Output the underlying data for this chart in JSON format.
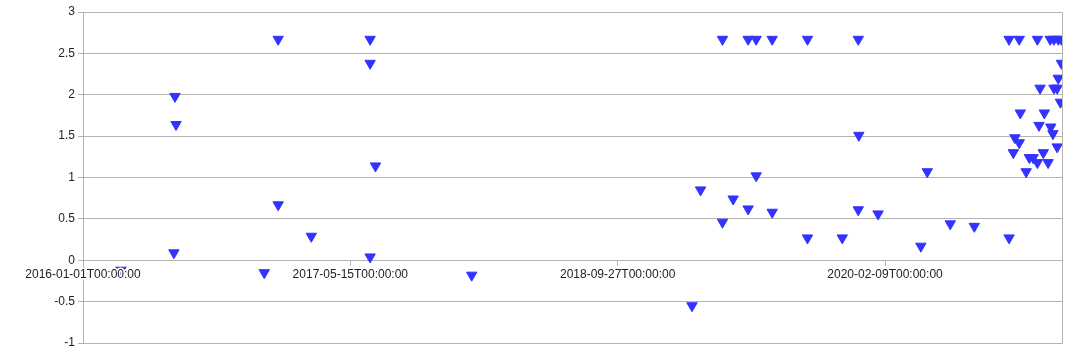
{
  "chart_data": {
    "type": "scatter",
    "marker": "triangle-down",
    "grid": "y",
    "legend": false,
    "xlim": [
      "2016-01-01",
      "2021-01-05"
    ],
    "xticks": [
      {
        "value": "2016-01-01",
        "label": "2016-01-01T00:00:00"
      },
      {
        "value": "2017-05-15",
        "label": "2017-05-15T00:00:00"
      },
      {
        "value": "2018-09-27",
        "label": "2018-09-27T00:00:00"
      },
      {
        "value": "2020-02-09",
        "label": "2020-02-09T00:00:00"
      }
    ],
    "ylim": [
      -1,
      3
    ],
    "yticks": [
      -1,
      -0.5,
      0,
      0.5,
      1,
      1.5,
      2,
      2.5,
      3
    ],
    "series": [
      {
        "color": "#3333ff",
        "x": [
          "2016-03-12",
          "2016-06-21",
          "2016-06-23",
          "2016-06-19",
          "2016-12-05",
          "2016-12-31",
          "2016-12-31",
          "2017-03-03",
          "2017-06-21",
          "2017-06-21",
          "2017-07-01",
          "2017-06-21",
          "2017-12-28",
          "2019-02-13",
          "2019-03-01",
          "2019-04-11",
          "2019-04-11",
          "2019-05-01",
          "2019-05-29",
          "2019-06-13",
          "2019-05-29",
          "2019-06-13",
          "2019-07-13",
          "2019-07-13",
          "2019-09-17",
          "2019-09-17",
          "2019-11-21",
          "2019-12-21",
          "2019-12-21",
          "2019-12-22",
          "2020-01-27",
          "2020-04-16",
          "2020-04-28",
          "2020-06-10",
          "2020-07-25",
          "2020-09-28",
          "2020-09-28",
          "2020-10-17",
          "2020-10-06",
          "2020-10-09",
          "2020-10-17",
          "2020-10-19",
          "2020-10-30",
          "2020-11-05",
          "2020-11-12",
          "2020-11-20",
          "2020-11-20",
          "2020-11-25",
          "2020-11-23",
          "2020-12-03",
          "2020-12-01",
          "2020-12-10",
          "2020-12-14",
          "2020-12-15",
          "2020-12-19",
          "2020-12-21",
          "2020-12-21",
          "2020-12-29",
          "2020-12-27",
          "2020-12-27",
          "2021-01-02",
          "2021-01-04",
          "2021-01-04",
          "2020-12-29"
        ],
        "values": [
          -0.12,
          1.98,
          1.64,
          0.09,
          -0.15,
          2.67,
          0.67,
          0.29,
          2.67,
          2.38,
          1.14,
          0.04,
          -0.18,
          -0.55,
          0.85,
          2.67,
          0.46,
          0.74,
          2.67,
          2.67,
          0.62,
          1.02,
          2.67,
          0.58,
          2.67,
          0.27,
          0.27,
          2.67,
          0.61,
          1.51,
          0.56,
          0.17,
          1.07,
          0.44,
          0.41,
          0.27,
          2.67,
          2.67,
          1.3,
          1.48,
          1.42,
          1.78,
          1.07,
          1.24,
          1.24,
          1.18,
          2.67,
          2.08,
          1.63,
          1.78,
          1.3,
          1.18,
          2.67,
          1.61,
          1.53,
          2.08,
          2.67,
          2.2,
          2.08,
          1.37,
          1.91,
          2.38,
          2.67,
          2.67
        ]
      }
    ]
  }
}
